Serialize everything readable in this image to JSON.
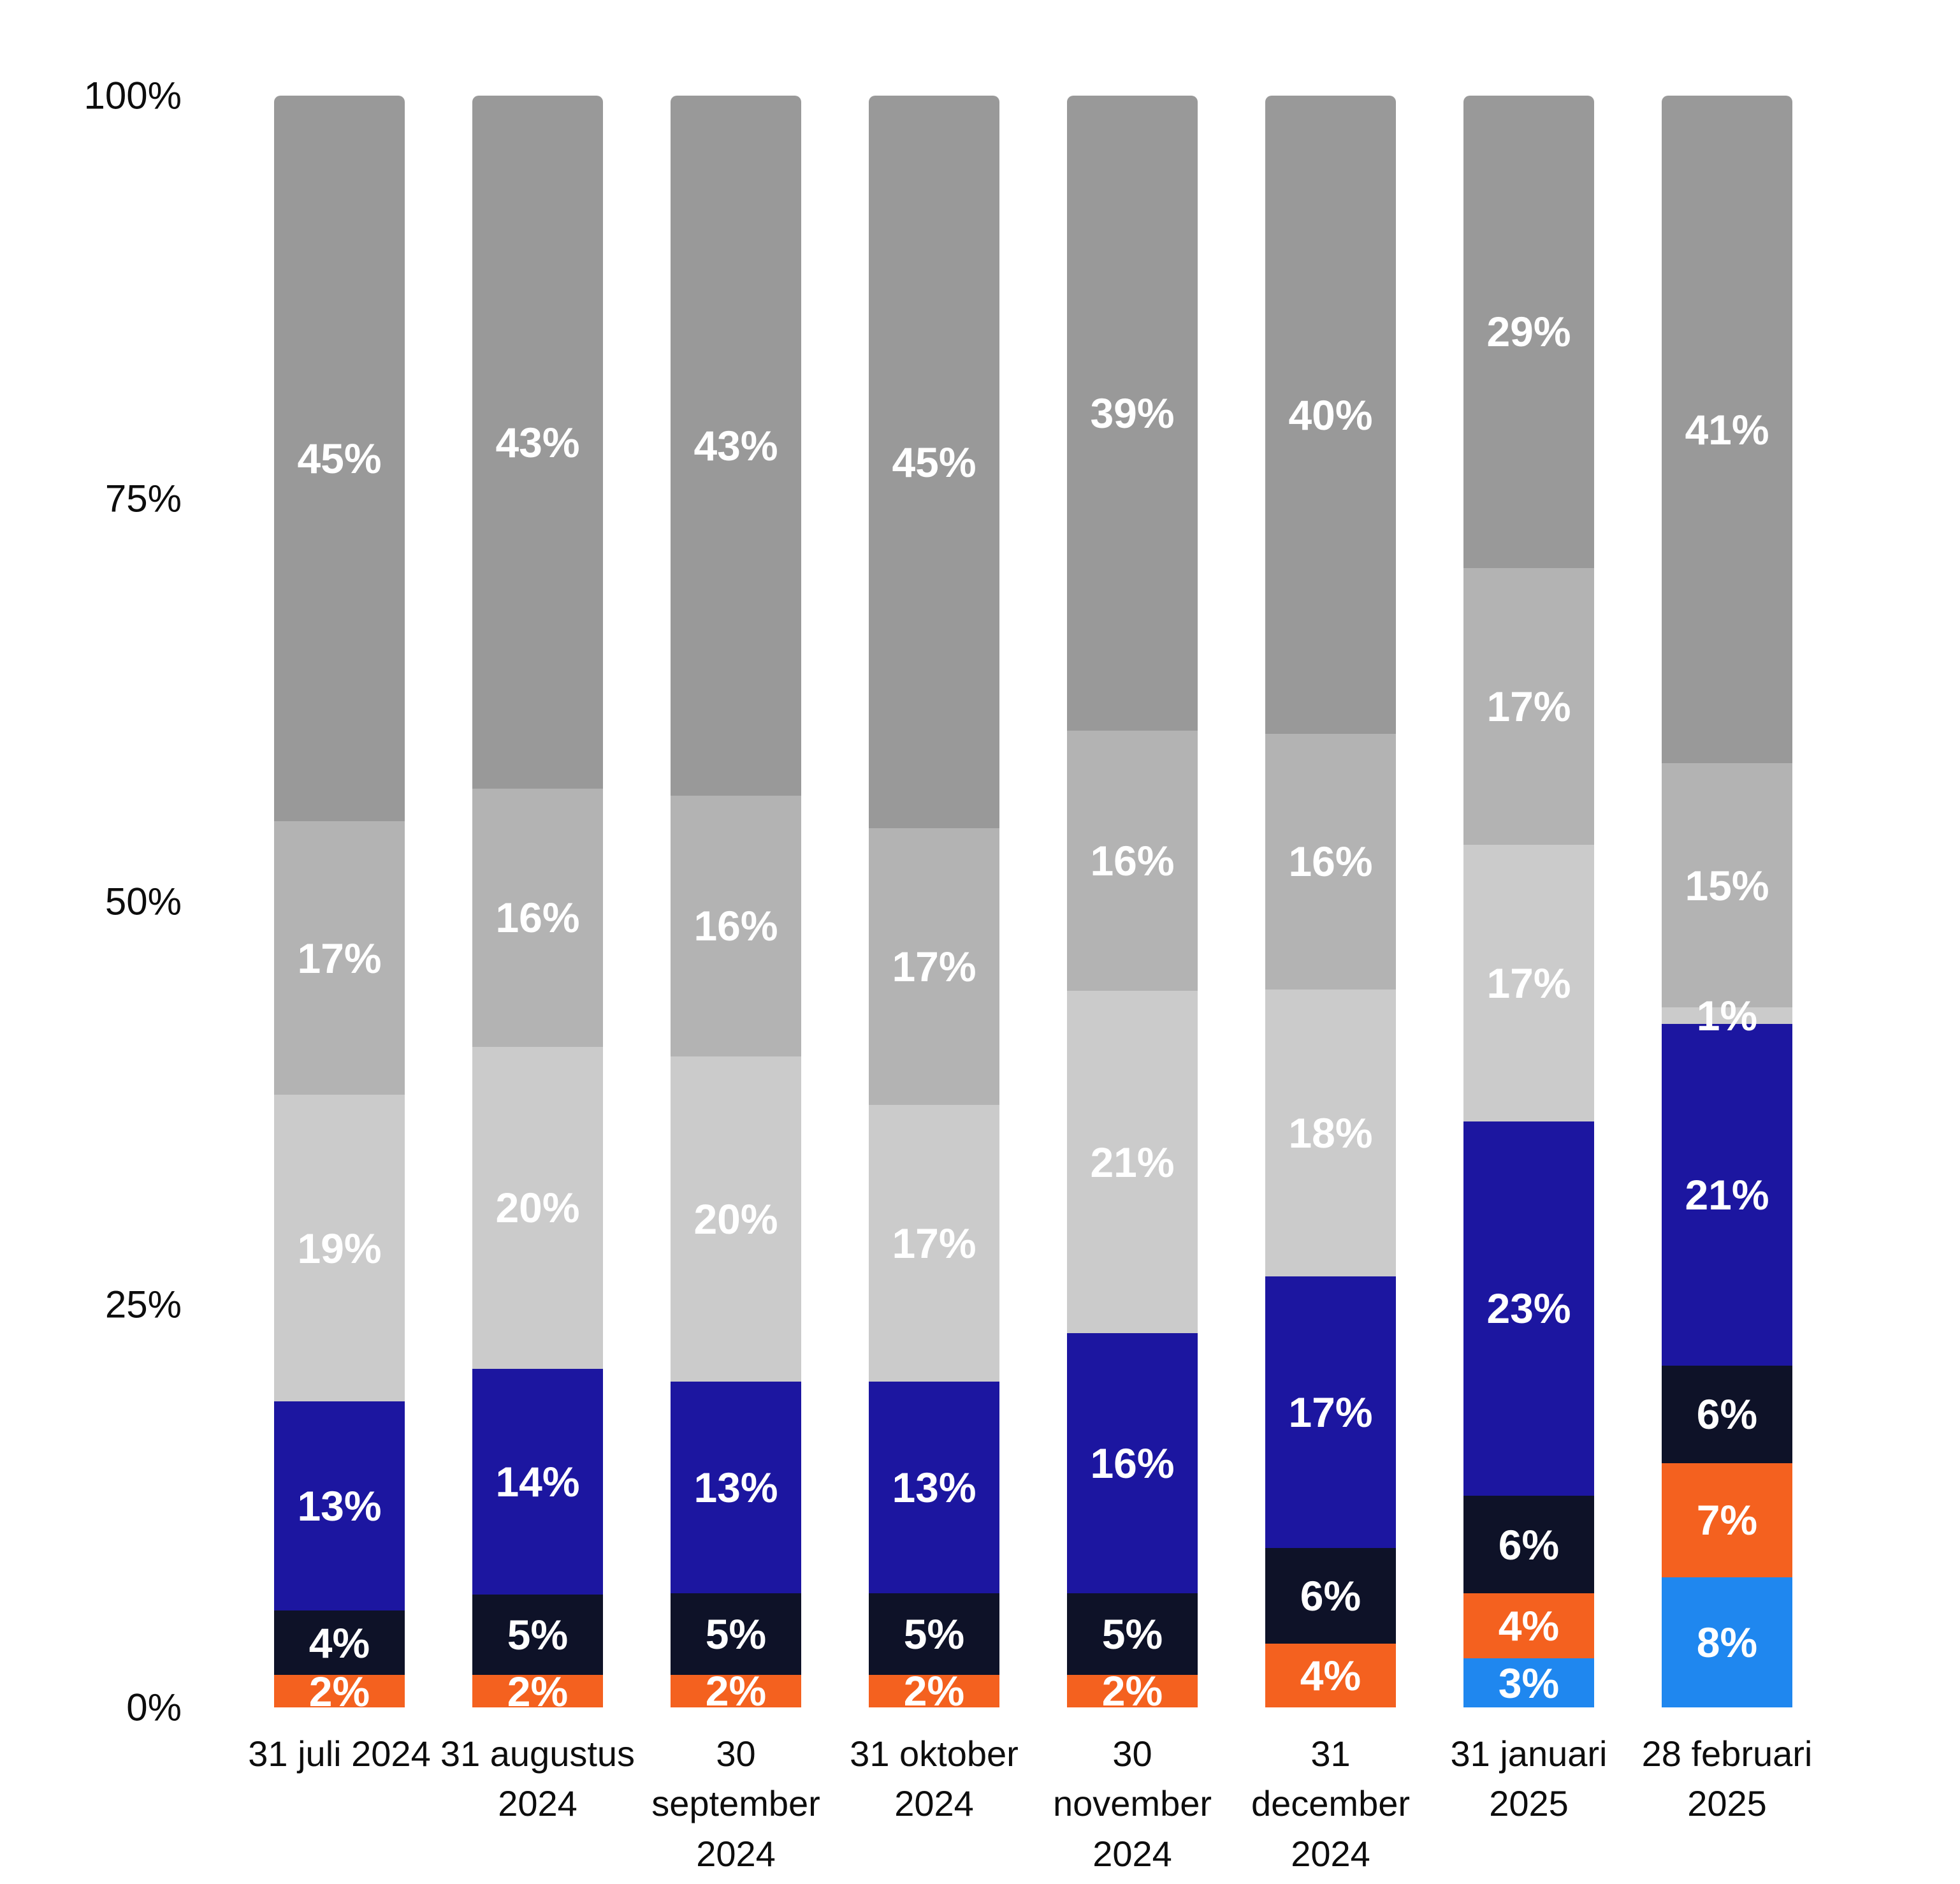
{
  "chart_data": {
    "type": "bar",
    "stacked": true,
    "orientation": "vertical",
    "title": "",
    "categories": [
      "31 juli 2024",
      "31 augustus 2024",
      "30 september 2024",
      "31 oktober 2024",
      "30 november 2024",
      "31 december 2024",
      "31 januari 2025",
      "28 februari 2025"
    ],
    "series": [
      {
        "name": "light-blue-segment",
        "color": "#1f87ef",
        "values": [
          0,
          0,
          0,
          0,
          0,
          0,
          3,
          8
        ]
      },
      {
        "name": "orange-segment",
        "color": "#f4611f",
        "values": [
          2,
          2,
          2,
          2,
          2,
          4,
          4,
          7
        ]
      },
      {
        "name": "navy-segment",
        "color": "#0e1228",
        "values": [
          4,
          5,
          5,
          5,
          5,
          6,
          6,
          6
        ]
      },
      {
        "name": "dark-blue-segment",
        "color": "#1c16a0",
        "values": [
          13,
          14,
          13,
          13,
          16,
          17,
          23,
          21
        ]
      },
      {
        "name": "light-gray-segment",
        "color": "#cbcbcb",
        "values": [
          19,
          20,
          20,
          17,
          21,
          18,
          17,
          1
        ]
      },
      {
        "name": "mid-gray-segment",
        "color": "#b3b3b3",
        "values": [
          17,
          16,
          16,
          17,
          16,
          16,
          17,
          15
        ]
      },
      {
        "name": "dark-gray-segment",
        "color": "#999999",
        "values": [
          45,
          43,
          43,
          45,
          39,
          40,
          29,
          41
        ]
      }
    ],
    "data_label_suffix": "%",
    "data_label_color": "#ffffff",
    "y_ticks": [
      "100%",
      "75%",
      "50%",
      "25%",
      "0%"
    ],
    "y_tick_values": [
      100,
      75,
      50,
      25,
      0
    ],
    "ylim": [
      0,
      100
    ],
    "grid": false,
    "legend_position": "none",
    "axis_text_color": "#0d0d0d",
    "background_color": "#ffffff"
  }
}
